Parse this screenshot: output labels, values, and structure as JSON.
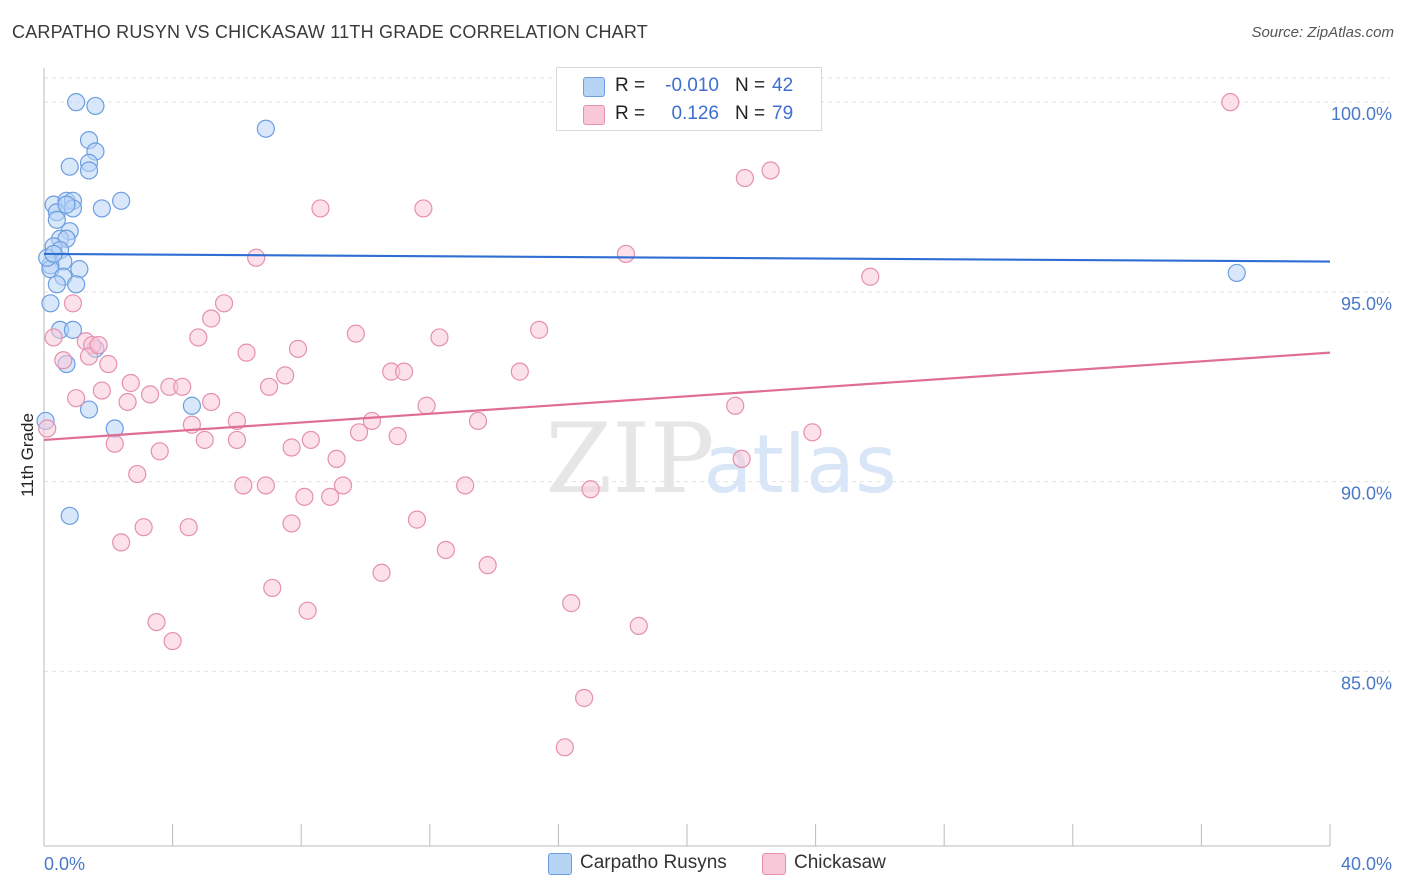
{
  "title": "CARPATHO RUSYN VS CHICKASAW 11TH GRADE CORRELATION CHART",
  "source": "Source: ZipAtlas.com",
  "watermark": {
    "zip": "ZIP",
    "atlas": "atlas"
  },
  "legend": {
    "rows": [
      {
        "r_label": "R =",
        "r_value": "-0.010",
        "n_label": "N =",
        "n_value": "42",
        "fill": "#b8d4f5",
        "stroke": "#6c9ee0"
      },
      {
        "r_label": "R =",
        "r_value": "0.126",
        "n_label": "N =",
        "n_value": "79",
        "fill": "#f9c8d8",
        "stroke": "#e590ad"
      }
    ]
  },
  "bottom_legend": {
    "items": [
      {
        "label": "Carpatho Rusyns",
        "fill": "#b8d4f5",
        "stroke": "#6c9ee0"
      },
      {
        "label": "Chickasaw",
        "fill": "#f9c8d8",
        "stroke": "#e590ad"
      }
    ]
  },
  "chart_data": {
    "type": "scatter",
    "title": "CARPATHO RUSYN VS CHICKASAW 11TH GRADE CORRELATION CHART",
    "xlabel": "",
    "ylabel": "11th Grade",
    "xlim": [
      0,
      40
    ],
    "ylim": [
      80.4,
      100.9
    ],
    "x_tick_labels": [
      "0.0%",
      "40.0%"
    ],
    "y_ticks": [
      85,
      90,
      95,
      100
    ],
    "y_tick_labels": [
      "85.0%",
      "90.0%",
      "95.0%",
      "100.0%"
    ],
    "grid": true,
    "series": [
      {
        "name": "Carpatho Rusyns",
        "color": "#6c9ee0",
        "fill": "#b8d4f5",
        "trend": {
          "x": [
            0,
            40
          ],
          "y": [
            96.0,
            95.8
          ],
          "color": "#2f6fd3"
        },
        "points": [
          [
            1.0,
            100.0
          ],
          [
            1.6,
            99.9
          ],
          [
            6.9,
            99.3
          ],
          [
            1.4,
            99.0
          ],
          [
            1.6,
            98.7
          ],
          [
            1.4,
            98.4
          ],
          [
            0.8,
            98.3
          ],
          [
            1.4,
            98.2
          ],
          [
            2.4,
            97.4
          ],
          [
            0.3,
            97.3
          ],
          [
            0.7,
            97.4
          ],
          [
            0.9,
            97.4
          ],
          [
            0.4,
            97.1
          ],
          [
            0.9,
            97.2
          ],
          [
            1.8,
            97.2
          ],
          [
            0.7,
            97.3
          ],
          [
            0.4,
            96.9
          ],
          [
            0.8,
            96.6
          ],
          [
            0.5,
            96.4
          ],
          [
            0.7,
            96.4
          ],
          [
            0.3,
            96.2
          ],
          [
            0.5,
            96.1
          ],
          [
            0.6,
            95.8
          ],
          [
            0.2,
            95.7
          ],
          [
            1.1,
            95.6
          ],
          [
            0.2,
            95.6
          ],
          [
            0.6,
            95.4
          ],
          [
            0.4,
            95.2
          ],
          [
            1.0,
            95.2
          ],
          [
            37.1,
            95.5
          ],
          [
            0.2,
            94.7
          ],
          [
            0.5,
            94.0
          ],
          [
            0.9,
            94.0
          ],
          [
            1.6,
            93.5
          ],
          [
            0.7,
            93.1
          ],
          [
            4.6,
            92.0
          ],
          [
            1.4,
            91.9
          ],
          [
            2.2,
            91.4
          ],
          [
            0.8,
            89.1
          ],
          [
            0.05,
            91.6
          ],
          [
            0.1,
            95.9
          ],
          [
            0.3,
            96.0
          ]
        ]
      },
      {
        "name": "Chickasaw",
        "color": "#e590ad",
        "fill": "#f9c8d8",
        "trend": {
          "x": [
            0,
            40
          ],
          "y": [
            91.1,
            93.4
          ],
          "color": "#e06d95"
        },
        "points": [
          [
            36.9,
            100.0
          ],
          [
            21.8,
            98.0
          ],
          [
            22.6,
            98.2
          ],
          [
            8.6,
            97.2
          ],
          [
            11.8,
            97.2
          ],
          [
            18.1,
            96.0
          ],
          [
            6.6,
            95.9
          ],
          [
            25.7,
            95.4
          ],
          [
            5.6,
            94.7
          ],
          [
            0.9,
            94.7
          ],
          [
            5.2,
            94.3
          ],
          [
            4.8,
            93.8
          ],
          [
            9.7,
            93.9
          ],
          [
            12.3,
            93.8
          ],
          [
            15.4,
            94.0
          ],
          [
            0.3,
            93.8
          ],
          [
            1.3,
            93.7
          ],
          [
            1.5,
            93.6
          ],
          [
            6.3,
            93.4
          ],
          [
            7.9,
            93.5
          ],
          [
            1.4,
            93.3
          ],
          [
            0.6,
            93.2
          ],
          [
            2.0,
            93.1
          ],
          [
            7.5,
            92.8
          ],
          [
            10.8,
            92.9
          ],
          [
            11.2,
            92.9
          ],
          [
            14.8,
            92.9
          ],
          [
            2.7,
            92.6
          ],
          [
            3.9,
            92.5
          ],
          [
            4.3,
            92.5
          ],
          [
            7.0,
            92.5
          ],
          [
            1.8,
            92.4
          ],
          [
            3.3,
            92.3
          ],
          [
            1.0,
            92.2
          ],
          [
            2.6,
            92.1
          ],
          [
            5.2,
            92.1
          ],
          [
            11.9,
            92.0
          ],
          [
            21.5,
            92.0
          ],
          [
            6.0,
            91.6
          ],
          [
            10.2,
            91.6
          ],
          [
            13.5,
            91.6
          ],
          [
            4.6,
            91.5
          ],
          [
            9.8,
            91.3
          ],
          [
            11.0,
            91.2
          ],
          [
            23.9,
            91.3
          ],
          [
            0.1,
            91.4
          ],
          [
            2.2,
            91.0
          ],
          [
            5.0,
            91.1
          ],
          [
            6.0,
            91.1
          ],
          [
            8.3,
            91.1
          ],
          [
            7.7,
            90.9
          ],
          [
            3.6,
            90.8
          ],
          [
            9.1,
            90.6
          ],
          [
            21.7,
            90.6
          ],
          [
            2.9,
            90.2
          ],
          [
            6.2,
            89.9
          ],
          [
            6.9,
            89.9
          ],
          [
            9.3,
            89.9
          ],
          [
            13.1,
            89.9
          ],
          [
            17.0,
            89.8
          ],
          [
            8.1,
            89.6
          ],
          [
            8.9,
            89.6
          ],
          [
            7.7,
            88.9
          ],
          [
            11.6,
            89.0
          ],
          [
            3.1,
            88.8
          ],
          [
            4.5,
            88.8
          ],
          [
            2.4,
            88.4
          ],
          [
            12.5,
            88.2
          ],
          [
            13.8,
            87.8
          ],
          [
            10.5,
            87.6
          ],
          [
            7.1,
            87.2
          ],
          [
            16.4,
            86.8
          ],
          [
            8.2,
            86.6
          ],
          [
            3.5,
            86.3
          ],
          [
            18.5,
            86.2
          ],
          [
            4.0,
            85.8
          ],
          [
            16.8,
            84.3
          ],
          [
            16.2,
            83.0
          ],
          [
            1.7,
            93.6
          ]
        ]
      }
    ]
  }
}
